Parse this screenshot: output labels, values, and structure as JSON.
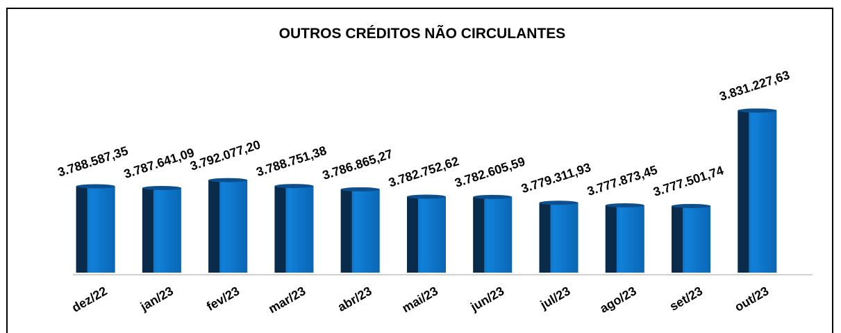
{
  "chart_data": {
    "type": "bar",
    "title": "OUTROS CRÉDITOS NÃO CIRCULANTES",
    "categories": [
      "dez/22",
      "jan/23",
      "fev/23",
      "mar/23",
      "abr/23",
      "mai/23",
      "jun/23",
      "jul/23",
      "ago/23",
      "set/23",
      "out/23"
    ],
    "values": [
      3788587.35,
      3787641.09,
      3792077.2,
      3788751.38,
      3786865.27,
      3782752.62,
      3782605.59,
      3779311.93,
      3777873.45,
      3777501.74,
      3831227.63
    ],
    "value_labels": [
      "3.788.587,35",
      "3.787.641,09",
      "3.792.077,20",
      "3.788.751,38",
      "3.786.865,27",
      "3.782.752,62",
      "3.782.605,59",
      "3.779.311,93",
      "3.777.873,45",
      "3.777.501,74",
      "3.831.227,63"
    ],
    "color": "#0b72c8",
    "ylim": [
      3740000,
      3870000
    ]
  }
}
